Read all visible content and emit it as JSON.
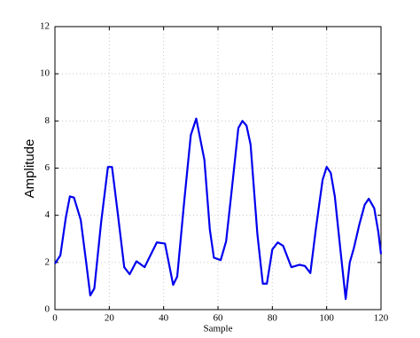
{
  "chart_data": {
    "type": "line",
    "x_label": "Sample",
    "y_label": "Amplitude",
    "x": [
      0,
      2,
      4,
      5.5,
      7,
      9.5,
      11.5,
      13,
      14.5,
      17,
      19.5,
      21,
      23,
      25.5,
      27.5,
      30,
      33,
      37.5,
      40.5,
      43.5,
      45,
      47.5,
      50,
      52,
      55,
      57,
      58.5,
      61,
      63,
      65,
      67.5,
      69,
      70.5,
      72,
      74.5,
      76.5,
      78,
      80,
      82,
      84,
      87,
      90,
      92,
      94,
      96,
      98.5,
      100,
      101.5,
      103,
      105,
      107,
      108.5,
      110,
      112,
      114,
      115.5,
      117.5,
      119,
      120
    ],
    "series": [
      {
        "color": "#0000ee",
        "values": [
          1.95,
          2.3,
          3.9,
          4.8,
          4.75,
          3.8,
          2.0,
          0.6,
          0.9,
          3.7,
          6.05,
          6.05,
          4.2,
          1.8,
          1.5,
          2.05,
          1.8,
          2.85,
          2.8,
          1.05,
          1.4,
          4.5,
          7.4,
          8.1,
          6.35,
          3.4,
          2.2,
          2.1,
          2.9,
          5.0,
          7.7,
          8.0,
          7.8,
          7.0,
          3.2,
          1.1,
          1.1,
          2.55,
          2.85,
          2.7,
          1.8,
          1.9,
          1.85,
          1.55,
          3.4,
          5.5,
          6.05,
          5.8,
          4.8,
          2.6,
          0.45,
          2.0,
          2.6,
          3.6,
          4.45,
          4.7,
          4.3,
          3.3,
          2.35
        ]
      }
    ],
    "xlim": [
      0,
      120
    ],
    "ylim": [
      0,
      12
    ],
    "xticks": [
      0,
      20,
      40,
      60,
      80,
      100,
      120
    ],
    "yticks": [
      0,
      2,
      4,
      6,
      8,
      10,
      12
    ],
    "grid": true
  }
}
